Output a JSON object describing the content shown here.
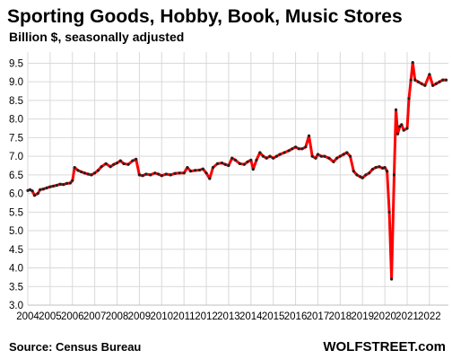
{
  "chart_data": {
    "type": "line",
    "title": "Sporting Goods, Hobby, Book, Music Stores",
    "subtitle": "Billion $, seasonally adjusted",
    "xlabel": "",
    "ylabel": "",
    "source": "Source: Census Bureau",
    "brand": "WOLFSTREET.com",
    "ylim": [
      3.0,
      9.8
    ],
    "xlim": [
      2004.0,
      2022.85
    ],
    "grid": true,
    "legend": "none",
    "y_ticks": [
      "3.0",
      "3.5",
      "4.0",
      "4.5",
      "5.0",
      "5.5",
      "6.0",
      "6.5",
      "7.0",
      "7.5",
      "8.0",
      "8.5",
      "9.0",
      "9.5"
    ],
    "x_ticks": [
      "2004",
      "2005",
      "2006",
      "2007",
      "2008",
      "2009",
      "2010",
      "2011",
      "2012",
      "2013",
      "2014",
      "2015",
      "2016",
      "2017",
      "2018",
      "2019",
      "2020",
      "2021",
      "2022"
    ],
    "colors": {
      "line": "#ff0000",
      "markers": "#222222",
      "grid": "#d9d9d9"
    },
    "series": [
      {
        "points": [
          [
            2004.0,
            6.08
          ],
          [
            2004.1,
            6.1
          ],
          [
            2004.2,
            6.07
          ],
          [
            2004.3,
            5.95
          ],
          [
            2004.45,
            6.0
          ],
          [
            2004.55,
            6.1
          ],
          [
            2004.7,
            6.12
          ],
          [
            2004.85,
            6.15
          ],
          [
            2005.0,
            6.18
          ],
          [
            2005.15,
            6.2
          ],
          [
            2005.3,
            6.22
          ],
          [
            2005.45,
            6.25
          ],
          [
            2005.6,
            6.24
          ],
          [
            2005.75,
            6.27
          ],
          [
            2005.9,
            6.28
          ],
          [
            2006.0,
            6.35
          ],
          [
            2006.1,
            6.7
          ],
          [
            2006.25,
            6.62
          ],
          [
            2006.4,
            6.58
          ],
          [
            2006.55,
            6.55
          ],
          [
            2006.7,
            6.52
          ],
          [
            2006.85,
            6.5
          ],
          [
            2007.0,
            6.55
          ],
          [
            2007.15,
            6.62
          ],
          [
            2007.3,
            6.72
          ],
          [
            2007.5,
            6.8
          ],
          [
            2007.7,
            6.72
          ],
          [
            2007.85,
            6.78
          ],
          [
            2008.0,
            6.82
          ],
          [
            2008.15,
            6.88
          ],
          [
            2008.3,
            6.8
          ],
          [
            2008.5,
            6.78
          ],
          [
            2008.7,
            6.88
          ],
          [
            2008.85,
            6.92
          ],
          [
            2009.0,
            6.5
          ],
          [
            2009.15,
            6.48
          ],
          [
            2009.3,
            6.52
          ],
          [
            2009.5,
            6.5
          ],
          [
            2009.7,
            6.55
          ],
          [
            2009.85,
            6.52
          ],
          [
            2010.0,
            6.48
          ],
          [
            2010.2,
            6.52
          ],
          [
            2010.4,
            6.5
          ],
          [
            2010.6,
            6.54
          ],
          [
            2010.8,
            6.55
          ],
          [
            2011.0,
            6.55
          ],
          [
            2011.15,
            6.7
          ],
          [
            2011.3,
            6.6
          ],
          [
            2011.5,
            6.62
          ],
          [
            2011.7,
            6.63
          ],
          [
            2011.85,
            6.66
          ],
          [
            2012.0,
            6.55
          ],
          [
            2012.15,
            6.4
          ],
          [
            2012.3,
            6.7
          ],
          [
            2012.5,
            6.8
          ],
          [
            2012.7,
            6.82
          ],
          [
            2012.85,
            6.78
          ],
          [
            2013.0,
            6.75
          ],
          [
            2013.15,
            6.95
          ],
          [
            2013.3,
            6.9
          ],
          [
            2013.5,
            6.8
          ],
          [
            2013.7,
            6.78
          ],
          [
            2013.85,
            6.85
          ],
          [
            2014.0,
            6.9
          ],
          [
            2014.1,
            6.65
          ],
          [
            2014.25,
            6.9
          ],
          [
            2014.4,
            7.1
          ],
          [
            2014.55,
            7.0
          ],
          [
            2014.7,
            6.95
          ],
          [
            2014.85,
            7.0
          ],
          [
            2015.0,
            6.95
          ],
          [
            2015.15,
            7.0
          ],
          [
            2015.3,
            7.05
          ],
          [
            2015.5,
            7.1
          ],
          [
            2015.7,
            7.15
          ],
          [
            2015.85,
            7.2
          ],
          [
            2016.0,
            7.25
          ],
          [
            2016.15,
            7.2
          ],
          [
            2016.3,
            7.2
          ],
          [
            2016.45,
            7.25
          ],
          [
            2016.6,
            7.55
          ],
          [
            2016.75,
            7.0
          ],
          [
            2016.9,
            6.95
          ],
          [
            2017.0,
            7.05
          ],
          [
            2017.15,
            7.0
          ],
          [
            2017.3,
            7.0
          ],
          [
            2017.5,
            6.95
          ],
          [
            2017.7,
            6.85
          ],
          [
            2017.85,
            6.95
          ],
          [
            2018.0,
            7.0
          ],
          [
            2018.15,
            7.05
          ],
          [
            2018.3,
            7.1
          ],
          [
            2018.45,
            7.0
          ],
          [
            2018.6,
            6.6
          ],
          [
            2018.75,
            6.5
          ],
          [
            2018.9,
            6.45
          ],
          [
            2019.0,
            6.42
          ],
          [
            2019.15,
            6.5
          ],
          [
            2019.3,
            6.55
          ],
          [
            2019.45,
            6.65
          ],
          [
            2019.6,
            6.7
          ],
          [
            2019.75,
            6.72
          ],
          [
            2019.9,
            6.68
          ],
          [
            2020.0,
            6.7
          ],
          [
            2020.1,
            6.6
          ],
          [
            2020.2,
            5.5
          ],
          [
            2020.3,
            3.7
          ],
          [
            2020.42,
            6.5
          ],
          [
            2020.5,
            8.25
          ],
          [
            2020.58,
            7.6
          ],
          [
            2020.67,
            7.8
          ],
          [
            2020.75,
            7.85
          ],
          [
            2020.85,
            7.7
          ],
          [
            2021.0,
            7.75
          ],
          [
            2021.08,
            8.55
          ],
          [
            2021.17,
            9.05
          ],
          [
            2021.25,
            9.52
          ],
          [
            2021.35,
            9.05
          ],
          [
            2021.5,
            9.0
          ],
          [
            2021.65,
            8.95
          ],
          [
            2021.8,
            8.9
          ],
          [
            2022.0,
            9.2
          ],
          [
            2022.15,
            8.9
          ],
          [
            2022.3,
            8.95
          ],
          [
            2022.45,
            9.0
          ],
          [
            2022.6,
            9.05
          ],
          [
            2022.75,
            9.05
          ]
        ]
      }
    ]
  }
}
